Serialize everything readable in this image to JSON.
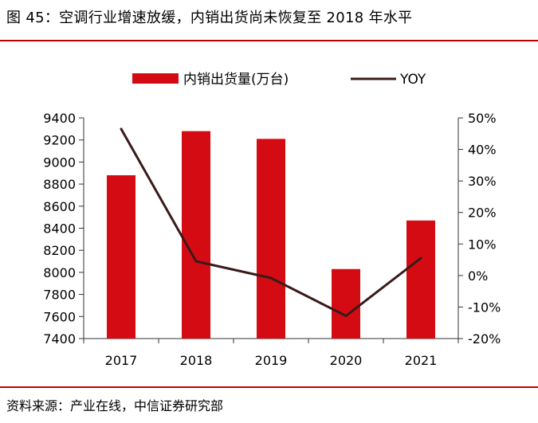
{
  "title": "图 45：空调行业增速放缓，内销出货尚未恢复至 2018 年水平",
  "source": "资料来源：产业在线，中信证券研究部",
  "colors": {
    "bar": "#d40b12",
    "line": "#3a1a1a",
    "rule": "#c00000"
  },
  "chart_data": {
    "type": "bar+line",
    "categories": [
      "2017",
      "2018",
      "2019",
      "2020",
      "2021"
    ],
    "series": [
      {
        "name": "内销出货量(万台)",
        "type": "bar",
        "axis": "left",
        "values": [
          8880,
          9280,
          9210,
          8030,
          8470
        ]
      },
      {
        "name": "YOY",
        "type": "line",
        "axis": "right",
        "values": [
          46.5,
          4.5,
          -0.8,
          -12.8,
          5.5
        ]
      }
    ],
    "left_axis": {
      "min": 7400,
      "max": 9400,
      "ticks": [
        "9400",
        "9200",
        "9000",
        "8800",
        "8600",
        "8400",
        "8200",
        "8000",
        "7800",
        "7600",
        "7400"
      ]
    },
    "right_axis": {
      "min": -20,
      "max": 50,
      "ticks": [
        "50%",
        "40%",
        "30%",
        "20%",
        "10%",
        "0%",
        "-10%",
        "-20%"
      ]
    },
    "legend": [
      "内销出货量(万台)",
      "YOY"
    ]
  }
}
